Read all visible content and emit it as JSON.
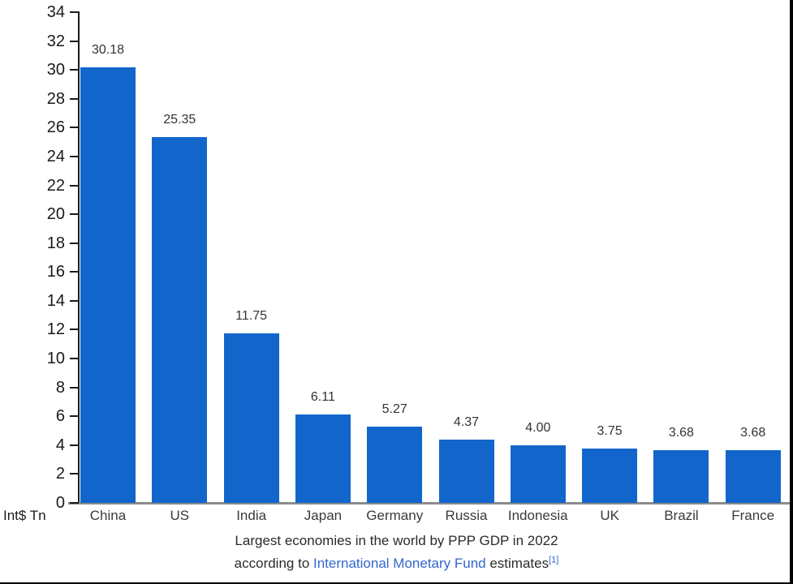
{
  "chart_data": {
    "type": "bar",
    "categories": [
      "China",
      "US",
      "India",
      "Japan",
      "Germany",
      "Russia",
      "Indonesia",
      "UK",
      "Brazil",
      "France"
    ],
    "values": [
      30.18,
      25.35,
      11.75,
      6.11,
      5.27,
      4.37,
      4.0,
      3.75,
      3.68,
      3.68
    ],
    "value_labels": [
      "30.18",
      "25.35",
      "11.75",
      "6.11",
      "5.27",
      "4.37",
      "4.00",
      "3.75",
      "3.68",
      "3.68"
    ],
    "title": "",
    "xlabel": "",
    "ylabel": "Int$ Tn",
    "ylim": [
      0,
      34
    ],
    "ytick_step": 2,
    "yticks": [
      0,
      2,
      4,
      6,
      8,
      10,
      12,
      14,
      16,
      18,
      20,
      22,
      24,
      26,
      28,
      30,
      32,
      34
    ],
    "grid": false,
    "legend_position": "none",
    "bar_color": "#1266CB"
  },
  "caption": {
    "line1": "Largest economies in the world by PPP GDP in 2022",
    "line2_prefix": "according to ",
    "link_text": "International Monetary Fund",
    "line2_suffix": " estimates",
    "footnote_ref": "[1]"
  },
  "colors": {
    "bar": "#1266CB",
    "link": "#3366CC",
    "value_text": "#333333",
    "category_text": "#3a3a3a",
    "axis": "#1a1a1a",
    "baseline": "#8c8c8c",
    "edge": "#000000"
  }
}
